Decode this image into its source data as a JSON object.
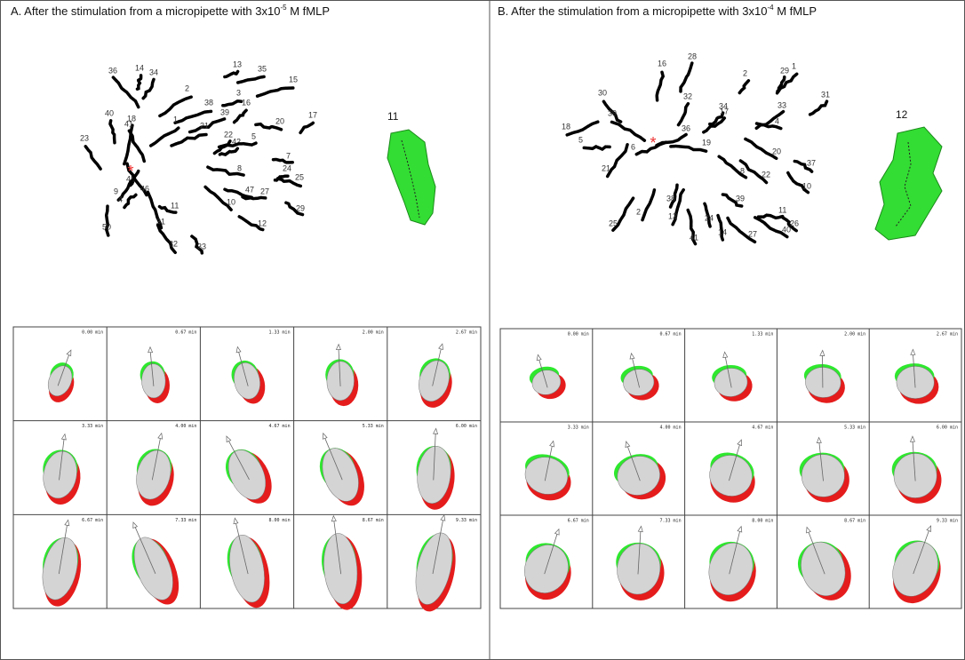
{
  "panels": [
    {
      "title": {
        "prefix": "A. After the stimulation from a micropipette with 3x10",
        "exponent": "-5",
        "suffix": " M fMLP"
      },
      "marker": "*",
      "track_labels": [
        "36",
        "14",
        "34",
        "13",
        "35",
        "15",
        "2",
        "3",
        "16",
        "38",
        "40",
        "18",
        "41",
        "39",
        "20",
        "17",
        "1",
        "21",
        "22",
        "42",
        "5",
        "23",
        "7",
        "8",
        "24",
        "25",
        "45",
        "46",
        "9",
        "4",
        "10",
        "47",
        "27",
        "11",
        "29",
        "31",
        "12",
        "50",
        "32",
        "33"
      ],
      "cell_label": "11",
      "times": [
        "0.00 min",
        "0.67 min",
        "1.33 min",
        "2.00 min",
        "2.67 min",
        "3.33 min",
        "4.00 min",
        "4.67 min",
        "5.33 min",
        "6.00 min",
        "6.67 min",
        "7.33 min",
        "8.00 min",
        "8.67 min",
        "9.33 min"
      ]
    },
    {
      "title": {
        "prefix": "B. After the stimulation from a micropipette with 3x10",
        "exponent": "-4",
        "suffix": " M fMLP"
      },
      "marker": "*",
      "track_labels": [
        "16",
        "28",
        "2",
        "29",
        "1",
        "30",
        "39",
        "32",
        "31",
        "33",
        "34",
        "17",
        "4",
        "18",
        "36",
        "5",
        "6",
        "19",
        "20",
        "21",
        "8",
        "22",
        "37",
        "10",
        "38",
        "39",
        "2",
        "11",
        "13",
        "24",
        "25",
        "26",
        "40",
        "14",
        "27",
        "41"
      ],
      "cell_label": "12",
      "times": [
        "0.00 min",
        "0.67 min",
        "1.33 min",
        "2.00 min",
        "2.67 min",
        "3.33 min",
        "4.00 min",
        "4.67 min",
        "5.33 min",
        "6.00 min",
        "6.67 min",
        "7.33 min",
        "8.00 min",
        "8.67 min",
        "9.33 min"
      ]
    }
  ]
}
